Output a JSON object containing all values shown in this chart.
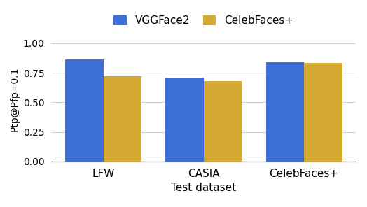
{
  "categories": [
    "LFW",
    "CASIA",
    "CelebFaces+"
  ],
  "vggface2_values": [
    0.86,
    0.71,
    0.84
  ],
  "celebfaces_values": [
    0.72,
    0.68,
    0.83
  ],
  "bar_color_vgg": "#3d6fd6",
  "bar_color_celeb": "#d4aa35",
  "ylabel": "Ptp@Pfp=0.1",
  "xlabel": "Test dataset",
  "ylim": [
    0.0,
    1.05
  ],
  "yticks": [
    0.0,
    0.25,
    0.5,
    0.75,
    1.0
  ],
  "legend_labels": [
    "VGGFace2",
    "CelebFaces+"
  ],
  "bar_width": 0.38,
  "background_color": "#ffffff",
  "grid_color": "#d0d0d0"
}
